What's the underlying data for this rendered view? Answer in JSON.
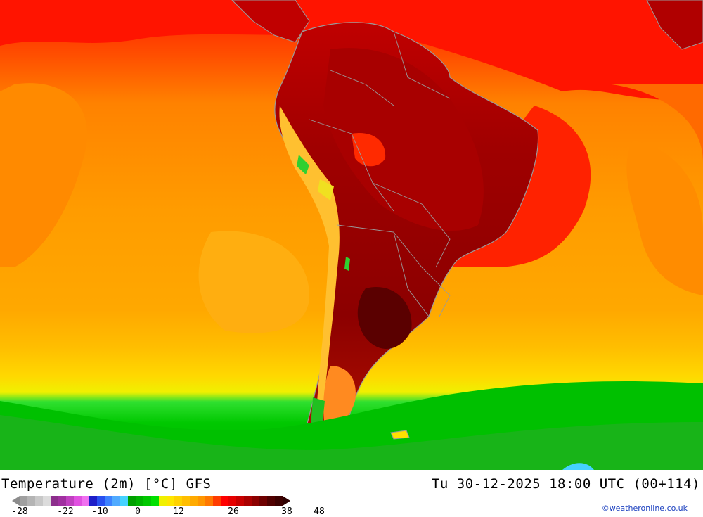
{
  "map": {
    "region": "South America",
    "palette": {
      "ocean_warm": "#ff7a00",
      "ocean_mid": "#ff9a00",
      "ocean_cool": "#ffb000",
      "ocean_tropic": "#ff0000",
      "land_hot": "#8c0000",
      "land_warm": "#b00000",
      "land_deep": "#5a0000",
      "andes_yellow": "#ffd040",
      "andes_green": "#30d030",
      "south_green": "#00c000",
      "south_light": "#30e030",
      "south_yellow": "#f0f000",
      "border": "#9a9a9a"
    }
  },
  "footer": {
    "title": "Temperature (2m) [°C] GFS",
    "datetime": "Tu 30-12-2025 18:00 UTC (00+114)",
    "credit": "©weatheronline.co.uk",
    "ticks": [
      "-28",
      "-22",
      "-10",
      "0",
      "12",
      "26",
      "38",
      "48"
    ],
    "colorbar": [
      "#a0a0a0",
      "#b4b4b4",
      "#c8c8c8",
      "#dcdcdc",
      "#8c2e8c",
      "#a030a0",
      "#c040c0",
      "#e050e0",
      "#f070f0",
      "#1e1ec8",
      "#2850f0",
      "#3c82ff",
      "#50aaff",
      "#46d2ff",
      "#00a000",
      "#00b400",
      "#00c800",
      "#00e000",
      "#f0f000",
      "#ffe600",
      "#ffd200",
      "#ffbe00",
      "#ffaa00",
      "#ff9600",
      "#ff7800",
      "#ff3c00",
      "#ff0000",
      "#e60000",
      "#c80000",
      "#aa0000",
      "#8c0000",
      "#6e0000",
      "#500000",
      "#3c0000"
    ]
  }
}
